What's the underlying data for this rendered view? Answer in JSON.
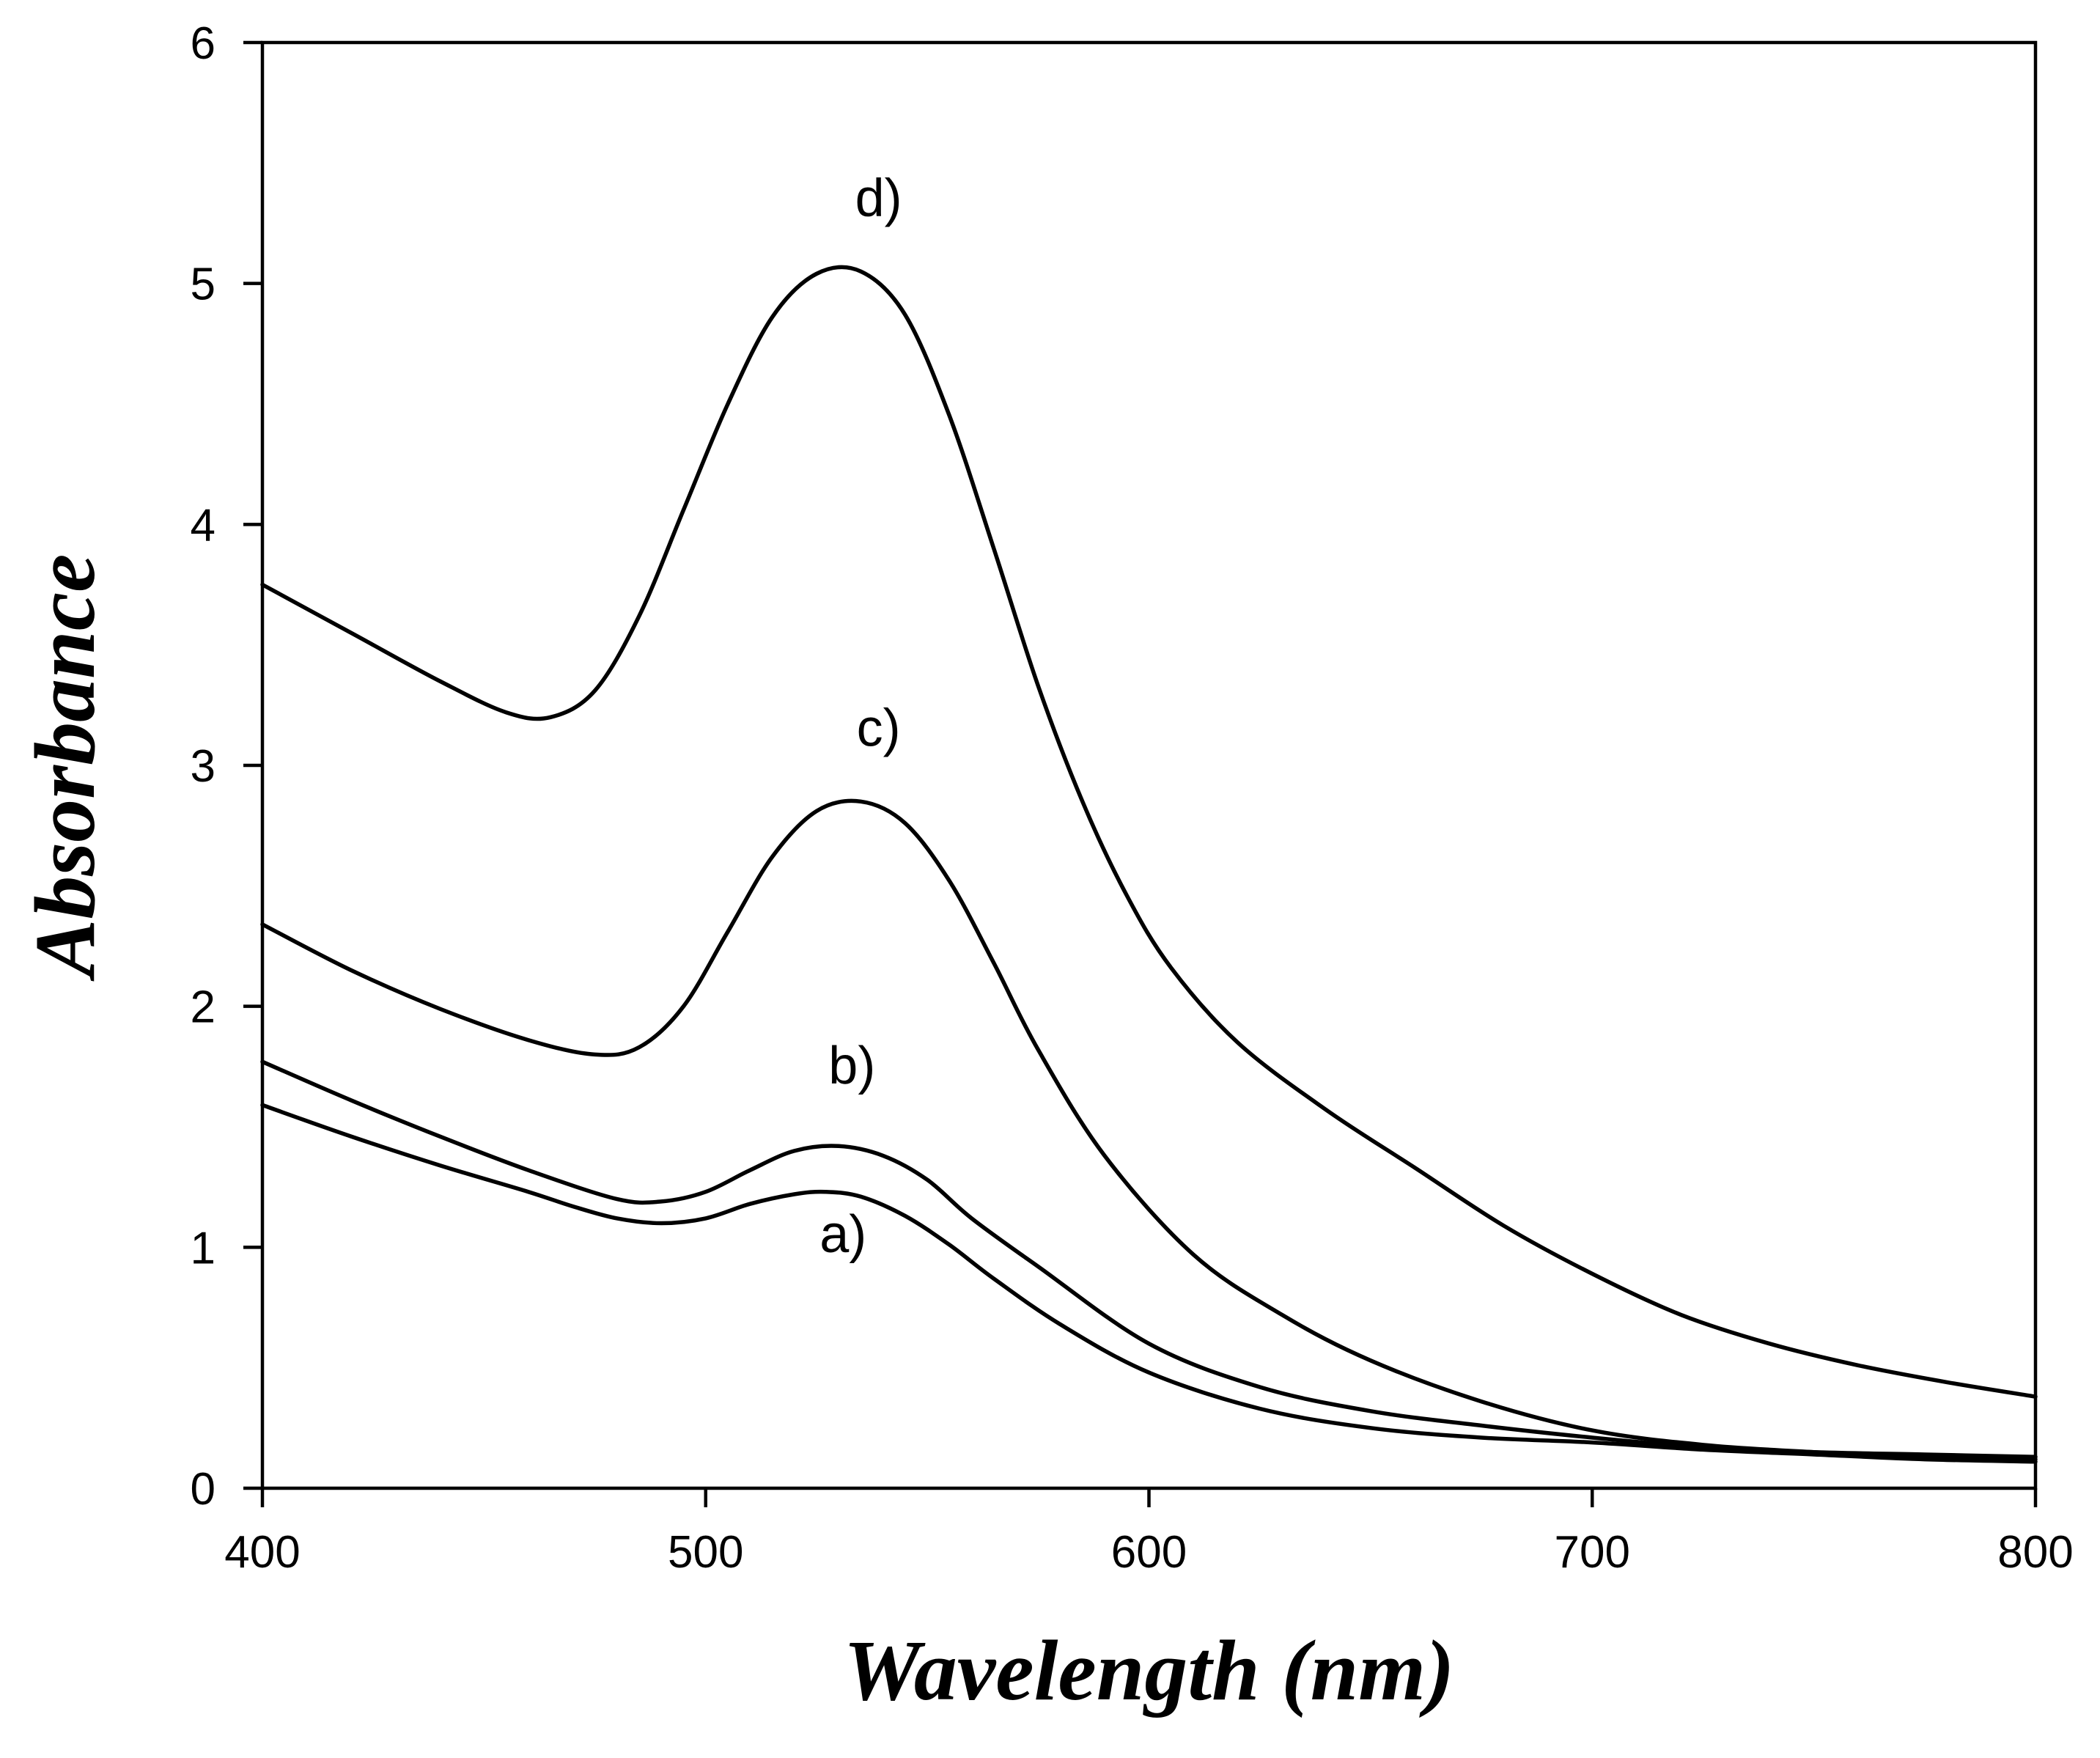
{
  "chart_data": {
    "type": "line",
    "title": "",
    "xlabel": "Wavelength (nm)",
    "ylabel": "Absorbance",
    "xlim": [
      400,
      800
    ],
    "ylim": [
      0,
      6
    ],
    "xticks": [
      "400",
      "500",
      "600",
      "700",
      "800"
    ],
    "yticks": [
      "0",
      "1",
      "2",
      "3",
      "4",
      "5",
      "6"
    ],
    "grid": false,
    "legend": "none",
    "series": [
      {
        "name": "a)",
        "x": [
          400,
          420,
          440,
          460,
          470,
          480,
          490,
          500,
          510,
          520,
          527,
          535,
          545,
          555,
          565,
          580,
          600,
          625,
          650,
          675,
          700,
          725,
          750,
          775,
          800
        ],
        "y": [
          1.59,
          1.46,
          1.34,
          1.23,
          1.17,
          1.12,
          1.1,
          1.12,
          1.18,
          1.22,
          1.23,
          1.21,
          1.13,
          1.01,
          0.87,
          0.68,
          0.48,
          0.33,
          0.25,
          0.21,
          0.19,
          0.16,
          0.14,
          0.12,
          0.11
        ]
      },
      {
        "name": "b)",
        "x": [
          400,
          420,
          440,
          460,
          480,
          490,
          500,
          510,
          520,
          530,
          540,
          550,
          560,
          575,
          600,
          625,
          650,
          675,
          700,
          725,
          750,
          775,
          800
        ],
        "y": [
          1.77,
          1.61,
          1.46,
          1.32,
          1.2,
          1.19,
          1.23,
          1.32,
          1.4,
          1.42,
          1.38,
          1.28,
          1.12,
          0.92,
          0.6,
          0.42,
          0.32,
          0.26,
          0.21,
          0.17,
          0.15,
          0.14,
          0.13
        ]
      },
      {
        "name": "c)",
        "x": [
          400,
          420,
          440,
          460,
          475,
          485,
          495,
          505,
          515,
          525,
          535,
          545,
          555,
          565,
          575,
          590,
          610,
          630,
          650,
          675,
          700,
          725,
          750,
          775,
          800
        ],
        "y": [
          2.34,
          2.15,
          1.99,
          1.86,
          1.8,
          1.83,
          2.0,
          2.31,
          2.62,
          2.81,
          2.85,
          2.76,
          2.52,
          2.18,
          1.82,
          1.38,
          0.97,
          0.72,
          0.53,
          0.36,
          0.24,
          0.18,
          0.15,
          0.13,
          0.12
        ]
      },
      {
        "name": "d)",
        "x": [
          400,
          420,
          440,
          455,
          465,
          475,
          485,
          495,
          505,
          515,
          525,
          535,
          545,
          555,
          565,
          575,
          585,
          595,
          605,
          620,
          640,
          660,
          680,
          700,
          720,
          740,
          760,
          780,
          800
        ],
        "y": [
          3.75,
          3.55,
          3.35,
          3.22,
          3.2,
          3.31,
          3.62,
          4.06,
          4.5,
          4.86,
          5.04,
          5.05,
          4.87,
          4.45,
          3.9,
          3.33,
          2.85,
          2.46,
          2.16,
          1.85,
          1.57,
          1.33,
          1.09,
          0.89,
          0.72,
          0.6,
          0.51,
          0.44,
          0.38
        ]
      }
    ],
    "annotations": [
      {
        "text": "a)",
        "x": 531,
        "y": 0.98
      },
      {
        "text": "b)",
        "x": 533,
        "y": 1.68
      },
      {
        "text": "c)",
        "x": 539,
        "y": 3.08
      },
      {
        "text": "d)",
        "x": 539,
        "y": 5.28
      }
    ]
  }
}
